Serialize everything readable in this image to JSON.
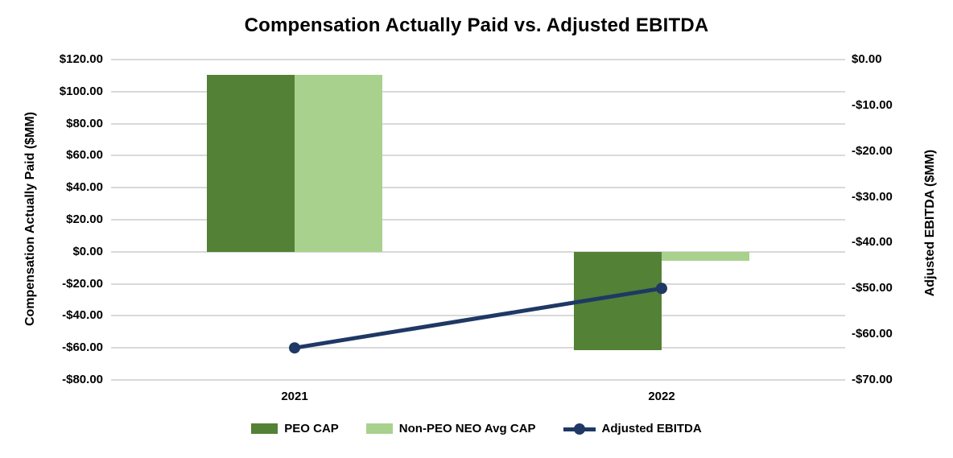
{
  "chart_data": {
    "type": "combo-bar-line",
    "title": "Compensation Actually Paid vs. Adjusted EBITDA",
    "categories": [
      "2021",
      "2022"
    ],
    "bar_series": [
      {
        "name": "PEO CAP",
        "color": "#538135",
        "axis": "left",
        "values": [
          110.5,
          -61.5
        ]
      },
      {
        "name": "Non-PEO NEO Avg CAP",
        "color": "#A9D18E",
        "axis": "left",
        "values": [
          110.5,
          -5.5
        ]
      }
    ],
    "line_series": [
      {
        "name": "Adjusted EBITDA",
        "color": "#1F3864",
        "axis": "right",
        "marker": "circle",
        "values": [
          -63,
          -50
        ]
      }
    ],
    "left_axis": {
      "label": "Compensation Actually Paid ($MM)",
      "min": -80,
      "max": 120,
      "ticks": [
        {
          "label": "$120.00",
          "value": 120
        },
        {
          "label": "$100.00",
          "value": 100
        },
        {
          "label": "$80.00",
          "value": 80
        },
        {
          "label": "$60.00",
          "value": 60
        },
        {
          "label": "$40.00",
          "value": 40
        },
        {
          "label": "$20.00",
          "value": 20
        },
        {
          "label": "$0.00",
          "value": 0
        },
        {
          "label": "-$20.00",
          "value": -20
        },
        {
          "label": "-$40.00",
          "value": -40
        },
        {
          "label": "-$60.00",
          "value": -60
        },
        {
          "label": "-$80.00",
          "value": -80
        }
      ]
    },
    "right_axis": {
      "label": "Adjusted EBITDA ($MM)",
      "min": -70,
      "max": 0,
      "ticks": [
        {
          "label": "$0.00",
          "value": 0
        },
        {
          "label": "-$10.00",
          "value": -10
        },
        {
          "label": "-$20.00",
          "value": -20
        },
        {
          "label": "-$30.00",
          "value": -30
        },
        {
          "label": "-$40.00",
          "value": -40
        },
        {
          "label": "-$50.00",
          "value": -50
        },
        {
          "label": "-$60.00",
          "value": -60
        },
        {
          "label": "-$70.00",
          "value": -70
        }
      ]
    },
    "grid": true,
    "legend_position": "bottom"
  },
  "styles": {
    "grid_color": "#D9D9D9",
    "background": "#FFFFFF",
    "text_color": "#000000",
    "peo_cap_color": "#538135",
    "non_peo_color": "#A9D18E",
    "ebitda_color": "#1F3864"
  }
}
